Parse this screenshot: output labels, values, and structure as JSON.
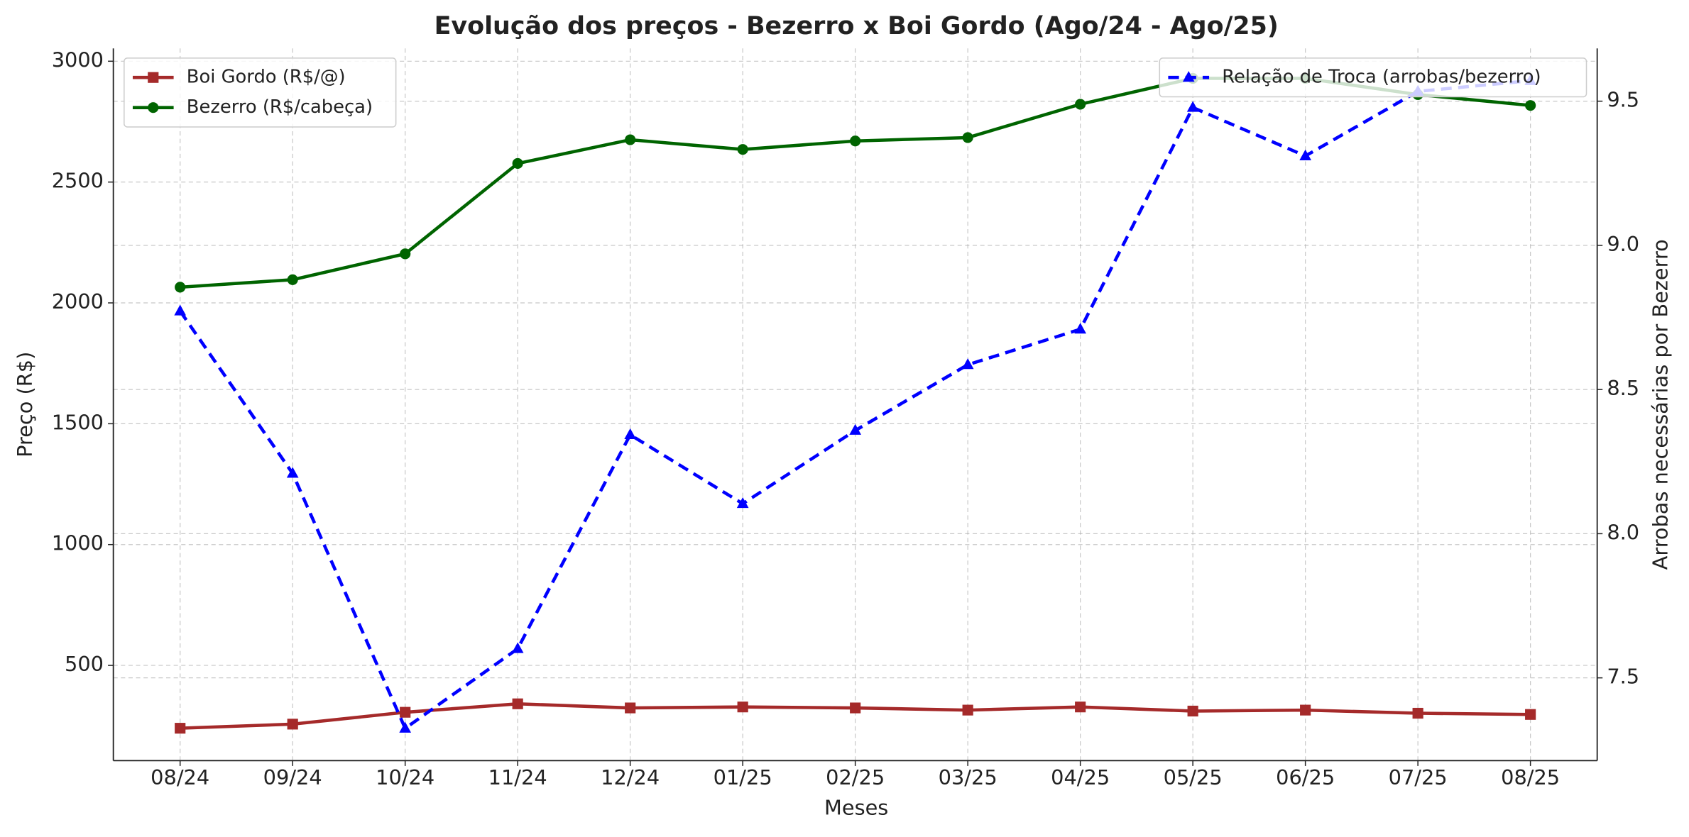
{
  "chart_data": {
    "type": "line",
    "title": "Evolução dos preços - Bezerro x Boi Gordo (Ago/24 - Ago/25)",
    "xlabel": "Meses",
    "ylabel": "Preço (R$)",
    "y2label": "Arrobas necessárias por Bezerro",
    "categories": [
      "08/24",
      "09/24",
      "10/24",
      "11/24",
      "12/24",
      "01/25",
      "02/25",
      "03/25",
      "04/25",
      "05/25",
      "06/25",
      "07/25",
      "08/25"
    ],
    "series": [
      {
        "name": "Boi Gordo (R$/@)",
        "color": "#a52a2a",
        "marker": "square",
        "linestyle": "solid",
        "axis": "y",
        "values": [
          240,
          257,
          306,
          341,
          324,
          328,
          324,
          315,
          328,
          311,
          315,
          302,
          297
        ]
      },
      {
        "name": "Bezerro (R$/cabeça)",
        "color": "#006400",
        "marker": "circle",
        "linestyle": "solid",
        "axis": "y",
        "values": [
          2065,
          2096,
          2203,
          2577,
          2675,
          2635,
          2670,
          2684,
          2822,
          2929,
          2929,
          2862,
          2817
        ]
      },
      {
        "name": "Relação de Troca (arrobas/bezerro)",
        "color": "#0000ff",
        "marker": "triangle",
        "linestyle": "dashed",
        "axis": "y2",
        "values": [
          8.772,
          8.209,
          7.325,
          7.601,
          8.343,
          8.104,
          8.358,
          8.586,
          8.709,
          9.478,
          9.31,
          9.534,
          9.571
        ]
      }
    ],
    "ylim": [
      106,
      3053
    ],
    "yticks": [
      500,
      1000,
      1500,
      2000,
      2500,
      3000
    ],
    "y2lim": [
      7.213,
      9.683
    ],
    "y2ticks": [
      7.5,
      {
        "value": 8,
        "label": "8.0"
      },
      8.5,
      {
        "value": 9,
        "label": "9.0"
      },
      9.5
    ],
    "grid": true,
    "legend": "upper left",
    "y2legend": "upper right"
  }
}
